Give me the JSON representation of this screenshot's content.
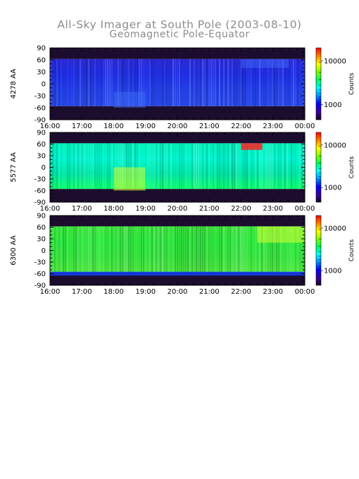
{
  "title": "All-Sky Imager at South Pole (2003-08-10)",
  "subtitle": "Geomagnetic Pole-Equator",
  "colors": {
    "frame": "#000000",
    "title": "#8c8c8c",
    "dark_band": "#1c0d2e"
  },
  "chart_data": [
    {
      "type": "heatmap",
      "ylabel": "4278 AA",
      "colorbar_label": "Counts",
      "colorbar_ticks": [
        "10000",
        "1000"
      ],
      "colorscale": "rainbow (black-purple-blue-cyan-green-yellow-red)",
      "x_ticks": [
        "16:00",
        "17:00",
        "18:00",
        "19:00",
        "20:00",
        "21:00",
        "22:00",
        "23:00",
        "00:00"
      ],
      "y_ticks": [
        "90",
        "60",
        "30",
        "0",
        "-30",
        "-60",
        "-90"
      ],
      "ylim": [
        -90,
        90
      ],
      "xlim": [
        "16:00",
        "00:00"
      ],
      "bands": [
        {
          "y_from": 62,
          "y_to": 90,
          "level": "background (dark)"
        },
        {
          "y_from": -56,
          "y_to": 62,
          "level": "~2000 counts (blue)"
        },
        {
          "y_from": -90,
          "y_to": -56,
          "level": "background (dark)"
        }
      ],
      "features": [
        {
          "x": "18:00-19:00",
          "y_from": -60,
          "y_to": -20,
          "level": "slight enhancement"
        },
        {
          "x": "22:00-23:30",
          "y_from": 40,
          "y_to": 62,
          "level": "slight enhancement"
        }
      ]
    },
    {
      "type": "heatmap",
      "ylabel": "5577 AA",
      "colorbar_label": "Counts",
      "colorbar_ticks": [
        "10000",
        "1000"
      ],
      "colorscale": "rainbow (black-purple-blue-cyan-green-yellow-red)",
      "x_ticks": [
        "16:00",
        "17:00",
        "18:00",
        "19:00",
        "20:00",
        "21:00",
        "22:00",
        "23:00",
        "00:00"
      ],
      "y_ticks": [
        "90",
        "60",
        "30",
        "0",
        "-30",
        "-60",
        "-90"
      ],
      "ylim": [
        -90,
        90
      ],
      "xlim": [
        "16:00",
        "00:00"
      ],
      "bands": [
        {
          "y_from": 62,
          "y_to": 90,
          "level": "background (dark)"
        },
        {
          "y_from": -56,
          "y_to": 62,
          "level": "~5000 counts (cyan-green)"
        },
        {
          "y_from": -90,
          "y_to": -56,
          "level": "background (dark)"
        }
      ],
      "features": [
        {
          "x": "18:00-19:00",
          "y_from": -60,
          "y_to": 0,
          "level": "~10000 (yellow)"
        },
        {
          "x": "22:00-22:40",
          "y_from": 45,
          "y_to": 62,
          "level": "~20000 (red)"
        }
      ]
    },
    {
      "type": "heatmap",
      "ylabel": "6300 AA",
      "colorbar_label": "Counts",
      "colorbar_ticks": [
        "10000",
        "1000"
      ],
      "colorscale": "rainbow (black-purple-blue-cyan-green-yellow-red)",
      "x_ticks": [
        "16:00",
        "17:00",
        "18:00",
        "19:00",
        "20:00",
        "21:00",
        "22:00",
        "23:00",
        "00:00"
      ],
      "y_ticks": [
        "90",
        "60",
        "30",
        "0",
        "-30",
        "-60",
        "-90"
      ],
      "ylim": [
        -90,
        90
      ],
      "xlim": [
        "16:00",
        "00:00"
      ],
      "bands": [
        {
          "y_from": 62,
          "y_to": 90,
          "level": "background (dark)"
        },
        {
          "y_from": -56,
          "y_to": 62,
          "level": "~5000 counts (green)"
        },
        {
          "y_from": -90,
          "y_to": -56,
          "level": "background (dark)"
        }
      ],
      "features": [
        {
          "x": "22:30-00:00",
          "y_from": 20,
          "y_to": 62,
          "level": "~10000 (yellow)"
        },
        {
          "x": "16:00-24:00",
          "y_from": -65,
          "y_to": -55,
          "level": "~1000 (blue edge)"
        }
      ]
    }
  ]
}
